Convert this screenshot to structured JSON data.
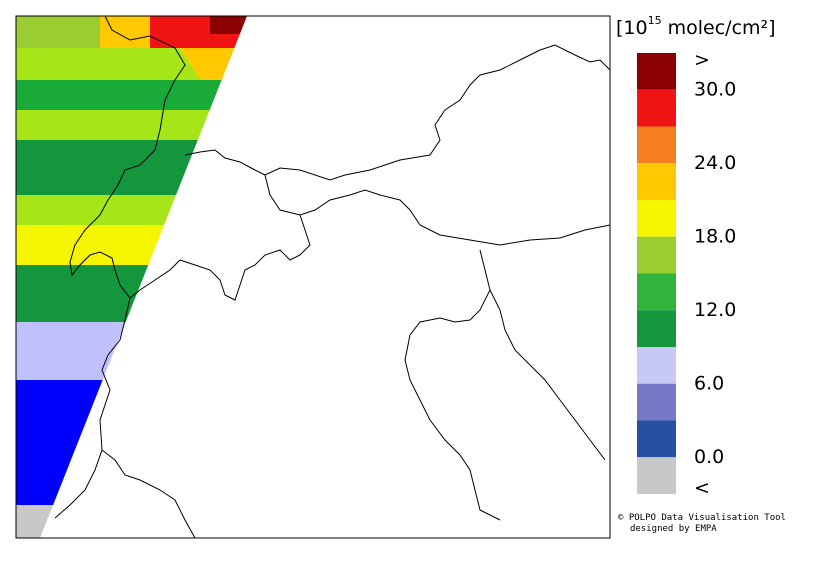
{
  "colorbar": {
    "title_base": "[10",
    "title_sup": "15",
    "title_rest": " molec/cm²]",
    "colors": [
      "#8b0000",
      "#f01414",
      "#f57f1e",
      "#ffc800",
      "#f5f500",
      "#9acd32",
      "#32b43c",
      "#14963c",
      "#c8c8f5",
      "#7878c8",
      "#2850a0",
      "#c8c8c8"
    ],
    "labels": [
      ">",
      "30.0",
      "24.0",
      "18.0",
      "12.0",
      "6.0",
      "0.0",
      "<"
    ]
  },
  "credits": [
    "© POLPO Data Visualisation Tool",
    "designed by EMPA"
  ]
}
